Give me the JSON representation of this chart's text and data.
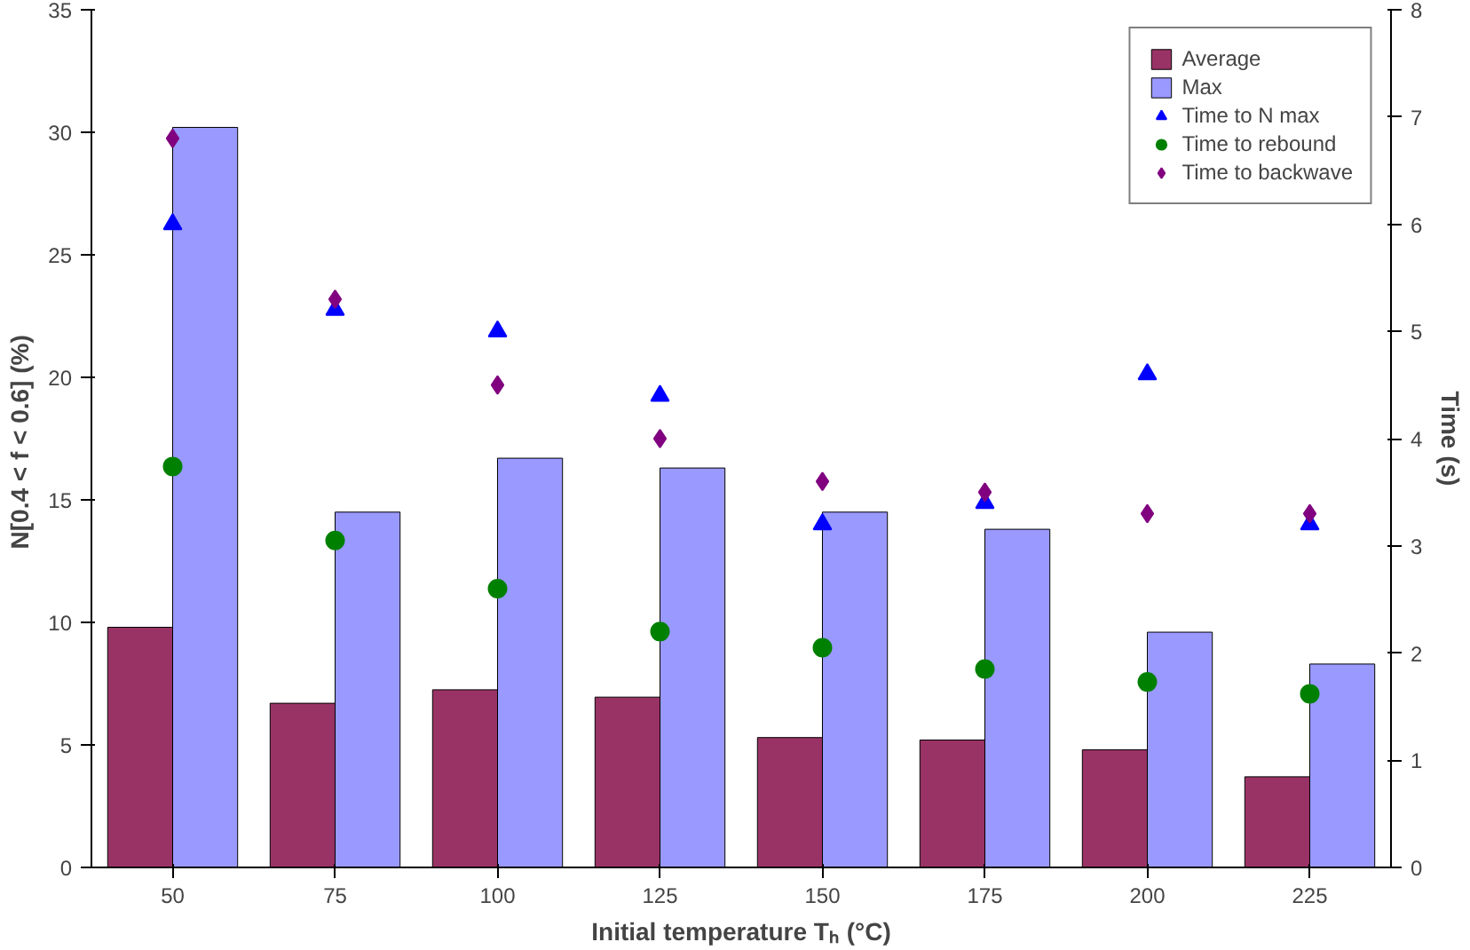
{
  "chart_data": {
    "type": "bar",
    "xlabel": "Initial temperature Tₕ (°C)",
    "ylabel": "N[0.4 < f < 0.6]  (%)",
    "y2label": "Time (s)",
    "categories": [
      "50",
      "75",
      "100",
      "125",
      "150",
      "175",
      "200",
      "225"
    ],
    "series": [
      {
        "name": "Average",
        "color": "#993366",
        "values": [
          9.8,
          6.7,
          7.25,
          6.95,
          5.3,
          5.2,
          4.8,
          3.7
        ]
      },
      {
        "name": "Max",
        "color": "#9999ff",
        "values": [
          30.2,
          14.5,
          16.7,
          16.3,
          14.5,
          13.8,
          9.6,
          8.3
        ]
      },
      {
        "name": "Time to N max",
        "type": "scatter",
        "marker": "triangle",
        "axis": "y2",
        "color": "#0000ff",
        "values": [
          6.0,
          5.2,
          5.0,
          4.4,
          3.2,
          3.4,
          4.6,
          3.2
        ]
      },
      {
        "name": "Time to rebound",
        "type": "scatter",
        "marker": "circle",
        "axis": "y2",
        "color": "#008000",
        "values": [
          3.74,
          3.05,
          2.6,
          2.2,
          2.05,
          1.85,
          1.73,
          1.62
        ]
      },
      {
        "name": "Time to backwave",
        "type": "scatter",
        "marker": "diamond",
        "axis": "y2",
        "color": "#800080",
        "values": [
          6.8,
          5.3,
          4.5,
          4.0,
          3.6,
          3.5,
          3.3,
          3.3
        ]
      }
    ],
    "ylim": [
      0,
      35
    ],
    "yticks": [
      0,
      5,
      10,
      15,
      20,
      25,
      30,
      35
    ],
    "y2lim": [
      0,
      8
    ],
    "y2ticks": [
      0,
      1,
      2,
      3,
      4,
      5,
      6,
      7,
      8
    ],
    "grid": false,
    "legend": "top right"
  }
}
